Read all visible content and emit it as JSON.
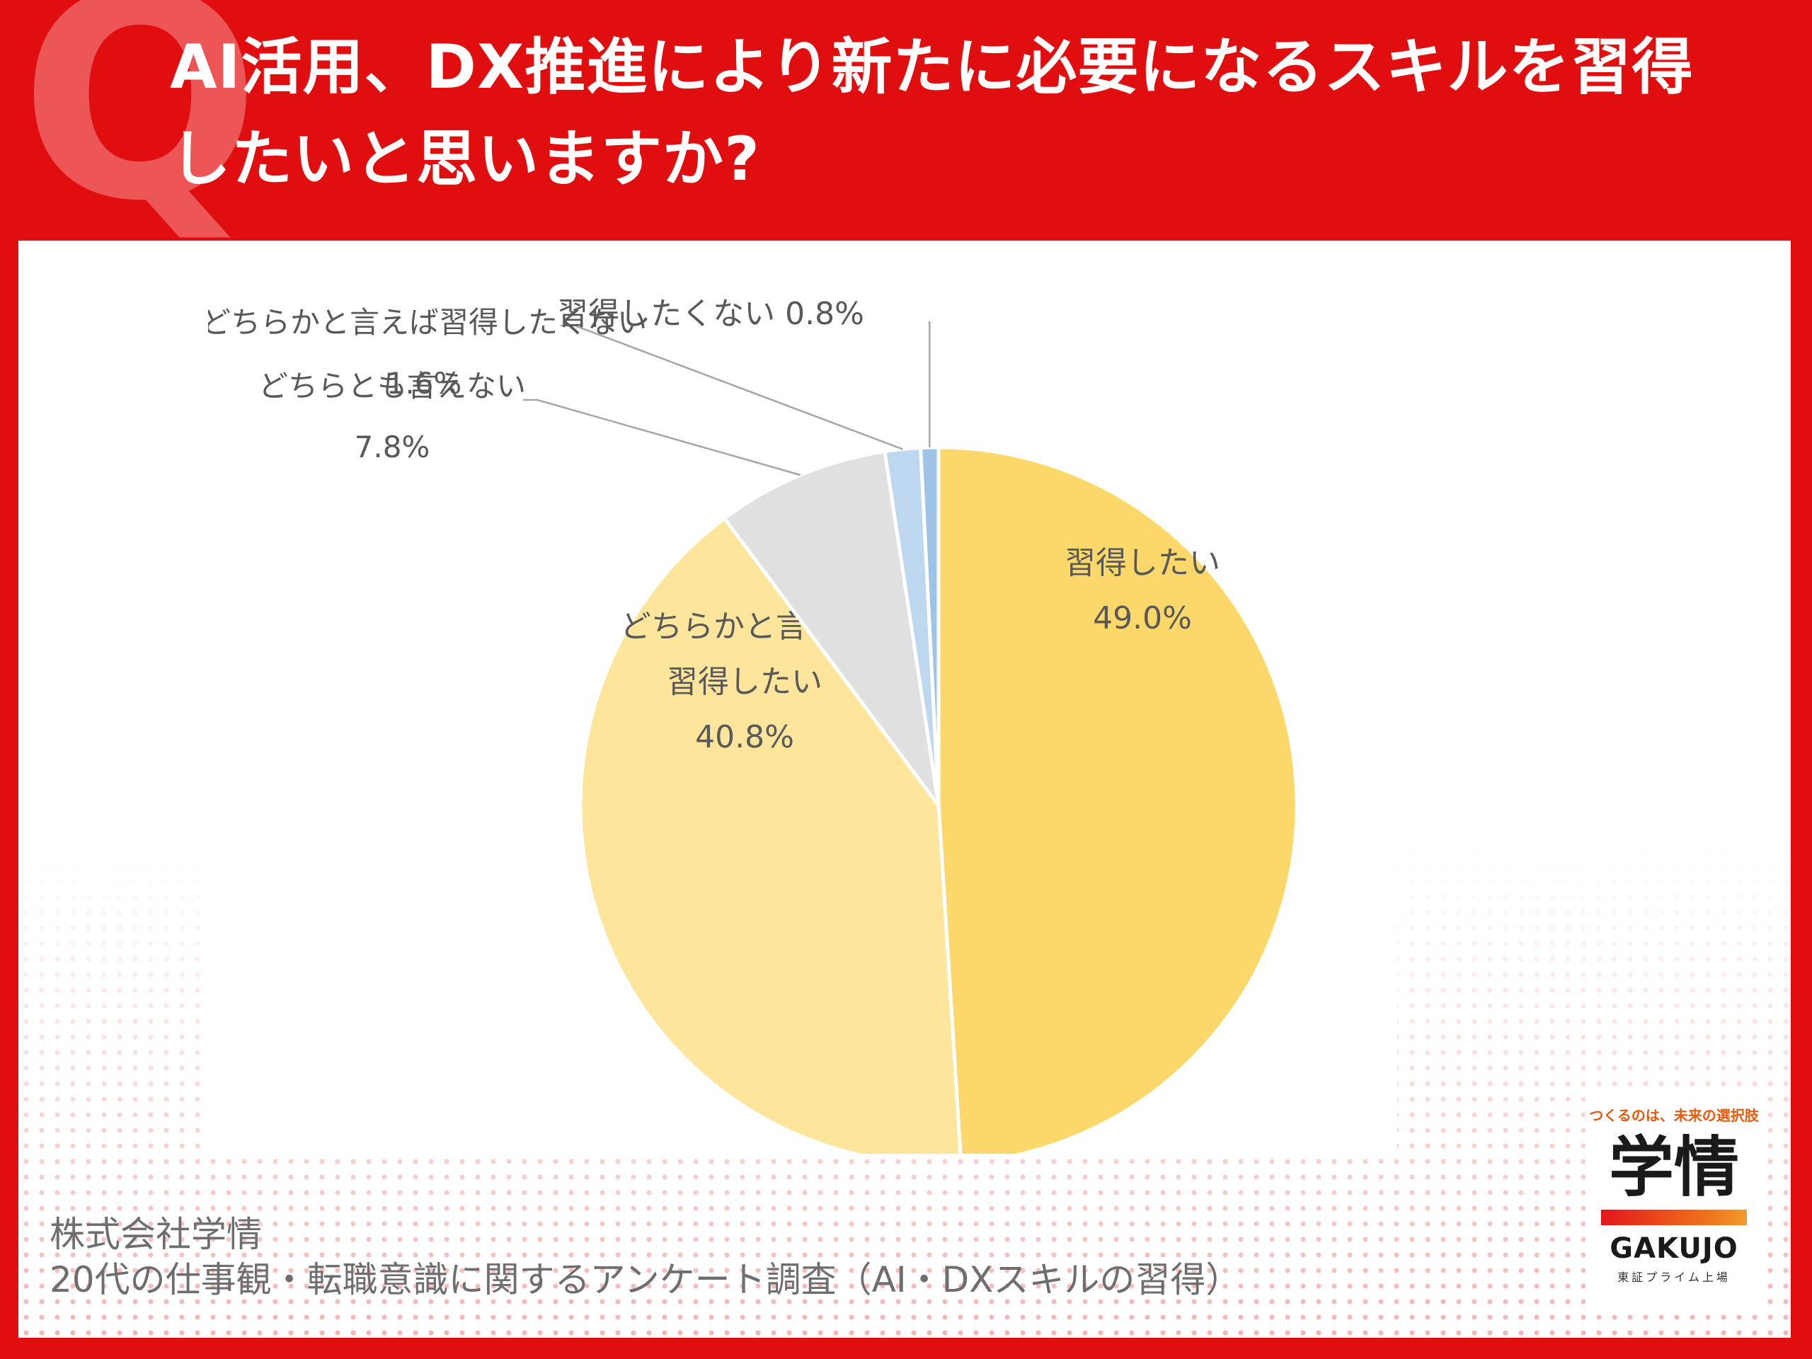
{
  "header": {
    "q_mark": "Q",
    "question_line1": "AI活用、DX推進により新たに必要になるスキルを習得",
    "question_line2": "したいと思いますか?"
  },
  "chart_data": {
    "type": "pie",
    "title": "",
    "slices": [
      {
        "label_lines": [
          "習得したい"
        ],
        "value": 49.0,
        "value_label": "49.0%",
        "color": "#fcd769"
      },
      {
        "label_lines": [
          "どちらかと言えば",
          "習得したい"
        ],
        "value": 40.8,
        "value_label": "40.8%",
        "color": "#fde59b"
      },
      {
        "label_lines": [
          "どちらとも言えない"
        ],
        "value": 7.8,
        "value_label": "7.8%",
        "color": "#e0e0e0"
      },
      {
        "label_lines": [
          "どちらかと言えば習得したくない"
        ],
        "value": 1.6,
        "value_label": "1.6%",
        "color": "#bdd7ee"
      },
      {
        "label_lines": [
          "習得したくない"
        ],
        "value": 0.8,
        "value_label": "0.8%",
        "color": "#9dc3e6"
      }
    ],
    "start_angle_deg": 0,
    "direction": "clockwise",
    "legend": "none"
  },
  "footer": {
    "company": "株式会社学情",
    "survey": "20代の仕事観・転職意識に関するアンケート調査（AI・DXスキルの習得）"
  },
  "logo": {
    "tagline": "つくるのは、未来の選択肢",
    "kanji": "学情",
    "brand": "GAKUJO",
    "listing": "東証プライム上場"
  },
  "colors": {
    "background_red": "#e00e0e",
    "q_mark": "#ec5656",
    "label_text": "#595959",
    "leader_line": "#a6a6a6"
  }
}
